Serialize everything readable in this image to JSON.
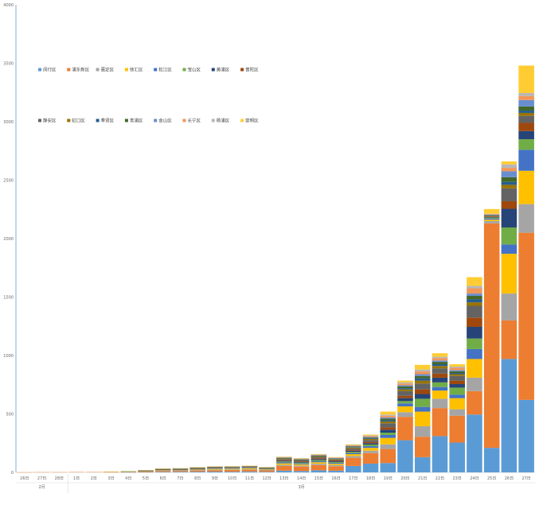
{
  "chart_data": {
    "type": "bar",
    "stacked": true,
    "title": "",
    "xlabel": "",
    "ylabel": "",
    "ylim": [
      0,
      4000
    ],
    "yticks": [
      0,
      500,
      1000,
      1500,
      2000,
      2500,
      3000,
      3500,
      4000
    ],
    "legend_position": "top-left",
    "categories": [
      "26日",
      "27日",
      "28日",
      "1日",
      "2日",
      "3日",
      "4日",
      "5日",
      "6日",
      "7日",
      "8日",
      "9日",
      "10日",
      "11日",
      "12日",
      "13日",
      "14日",
      "15日",
      "16日",
      "17日",
      "18日",
      "19日",
      "20日",
      "21日",
      "22日",
      "23日",
      "24日",
      "25日",
      "26日",
      "27日"
    ],
    "groups": [
      {
        "label": "2月",
        "start": 0,
        "end": 2
      },
      {
        "label": "3月",
        "start": 3,
        "end": 29
      }
    ],
    "series": [
      {
        "name": "闵行区",
        "color": "#5B9BD5",
        "values": [
          0,
          0,
          0,
          0,
          0,
          0,
          1,
          2,
          4,
          5,
          6,
          7,
          6,
          8,
          5,
          15,
          12,
          18,
          15,
          55,
          75,
          80,
          275,
          130,
          310,
          255,
          495,
          210,
          970,
          620
        ]
      },
      {
        "name": "浦东新区",
        "color": "#ED7D31",
        "values": [
          1,
          2,
          2,
          3,
          3,
          4,
          5,
          6,
          8,
          8,
          10,
          12,
          14,
          15,
          12,
          40,
          38,
          45,
          38,
          70,
          90,
          120,
          200,
          175,
          240,
          230,
          200,
          1920,
          330,
          1430
        ]
      },
      {
        "name": "嘉定区",
        "color": "#A5A5A5",
        "values": [
          0,
          0,
          0,
          0,
          0,
          1,
          1,
          2,
          3,
          3,
          4,
          5,
          5,
          5,
          4,
          10,
          9,
          11,
          9,
          15,
          20,
          40,
          40,
          90,
          80,
          55,
          115,
          20,
          230,
          245
        ]
      },
      {
        "name": "徐汇区",
        "color": "#FFC000",
        "values": [
          0,
          0,
          0,
          0,
          0,
          1,
          1,
          2,
          3,
          3,
          4,
          5,
          5,
          6,
          4,
          12,
          10,
          13,
          11,
          16,
          25,
          55,
          50,
          125,
          70,
          95,
          160,
          12,
          340,
          285
        ]
      },
      {
        "name": "松江区",
        "color": "#4472C4",
        "values": [
          0,
          0,
          0,
          0,
          0,
          0,
          1,
          1,
          2,
          2,
          3,
          3,
          3,
          3,
          3,
          8,
          7,
          9,
          8,
          10,
          14,
          25,
          25,
          40,
          30,
          30,
          85,
          10,
          80,
          180
        ]
      },
      {
        "name": "宝山区",
        "color": "#70AD47",
        "values": [
          0,
          0,
          0,
          0,
          0,
          0,
          1,
          1,
          2,
          2,
          3,
          3,
          3,
          3,
          3,
          8,
          7,
          9,
          8,
          10,
          14,
          20,
          20,
          70,
          40,
          60,
          90,
          8,
          145,
          90
        ]
      },
      {
        "name": "黄浦区",
        "color": "#264478",
        "values": [
          0,
          0,
          0,
          0,
          0,
          0,
          0,
          1,
          2,
          2,
          2,
          3,
          3,
          3,
          2,
          7,
          6,
          8,
          7,
          9,
          12,
          25,
          25,
          40,
          40,
          30,
          100,
          5,
          160,
          70
        ]
      },
      {
        "name": "普陀区",
        "color": "#9E480E",
        "values": [
          0,
          0,
          0,
          0,
          0,
          0,
          0,
          1,
          1,
          2,
          2,
          3,
          3,
          3,
          2,
          6,
          6,
          7,
          6,
          8,
          11,
          20,
          20,
          40,
          35,
          30,
          80,
          5,
          65,
          70
        ]
      },
      {
        "name": "静安区",
        "color": "#636363",
        "values": [
          0,
          0,
          0,
          0,
          0,
          0,
          0,
          1,
          2,
          2,
          3,
          3,
          3,
          3,
          3,
          8,
          7,
          9,
          8,
          12,
          16,
          35,
          40,
          50,
          45,
          40,
          100,
          5,
          110,
          60
        ]
      },
      {
        "name": "虹口区",
        "color": "#997300",
        "values": [
          0,
          0,
          0,
          0,
          0,
          0,
          0,
          1,
          1,
          1,
          2,
          2,
          2,
          2,
          2,
          5,
          4,
          6,
          5,
          7,
          9,
          15,
          15,
          25,
          20,
          15,
          30,
          3,
          30,
          25
        ]
      },
      {
        "name": "奉贤区",
        "color": "#255E91",
        "values": [
          0,
          0,
          0,
          0,
          0,
          0,
          0,
          0,
          1,
          1,
          1,
          1,
          1,
          1,
          1,
          3,
          3,
          4,
          3,
          4,
          6,
          10,
          10,
          20,
          15,
          10,
          25,
          2,
          25,
          20
        ]
      },
      {
        "name": "青浦区",
        "color": "#43682B",
        "values": [
          0,
          0,
          0,
          0,
          0,
          0,
          0,
          0,
          1,
          1,
          1,
          1,
          1,
          1,
          1,
          3,
          3,
          4,
          3,
          5,
          6,
          15,
          15,
          20,
          20,
          15,
          30,
          3,
          40,
          35
        ]
      },
      {
        "name": "金山区",
        "color": "#698ED0",
        "values": [
          0,
          0,
          0,
          0,
          0,
          0,
          0,
          0,
          1,
          1,
          1,
          1,
          1,
          1,
          1,
          2,
          2,
          3,
          2,
          4,
          5,
          10,
          10,
          15,
          12,
          10,
          20,
          2,
          50,
          55
        ]
      },
      {
        "name": "长宁区",
        "color": "#F1975A",
        "values": [
          0,
          0,
          0,
          0,
          0,
          0,
          0,
          0,
          1,
          1,
          1,
          1,
          1,
          1,
          1,
          3,
          3,
          4,
          3,
          6,
          8,
          15,
          15,
          25,
          20,
          20,
          45,
          5,
          30,
          35
        ]
      },
      {
        "name": "杨浦区",
        "color": "#B7B7B7",
        "values": [
          0,
          0,
          0,
          0,
          0,
          0,
          0,
          0,
          1,
          1,
          1,
          1,
          1,
          1,
          1,
          2,
          2,
          3,
          2,
          4,
          5,
          10,
          10,
          15,
          12,
          10,
          20,
          3,
          30,
          25
        ]
      },
      {
        "name": "崇明区",
        "color": "#FFCD33",
        "values": [
          0,
          0,
          0,
          0,
          0,
          0,
          0,
          0,
          1,
          1,
          1,
          1,
          1,
          1,
          1,
          3,
          3,
          4,
          3,
          5,
          7,
          25,
          15,
          40,
          30,
          20,
          75,
          40,
          25,
          235
        ]
      }
    ]
  }
}
